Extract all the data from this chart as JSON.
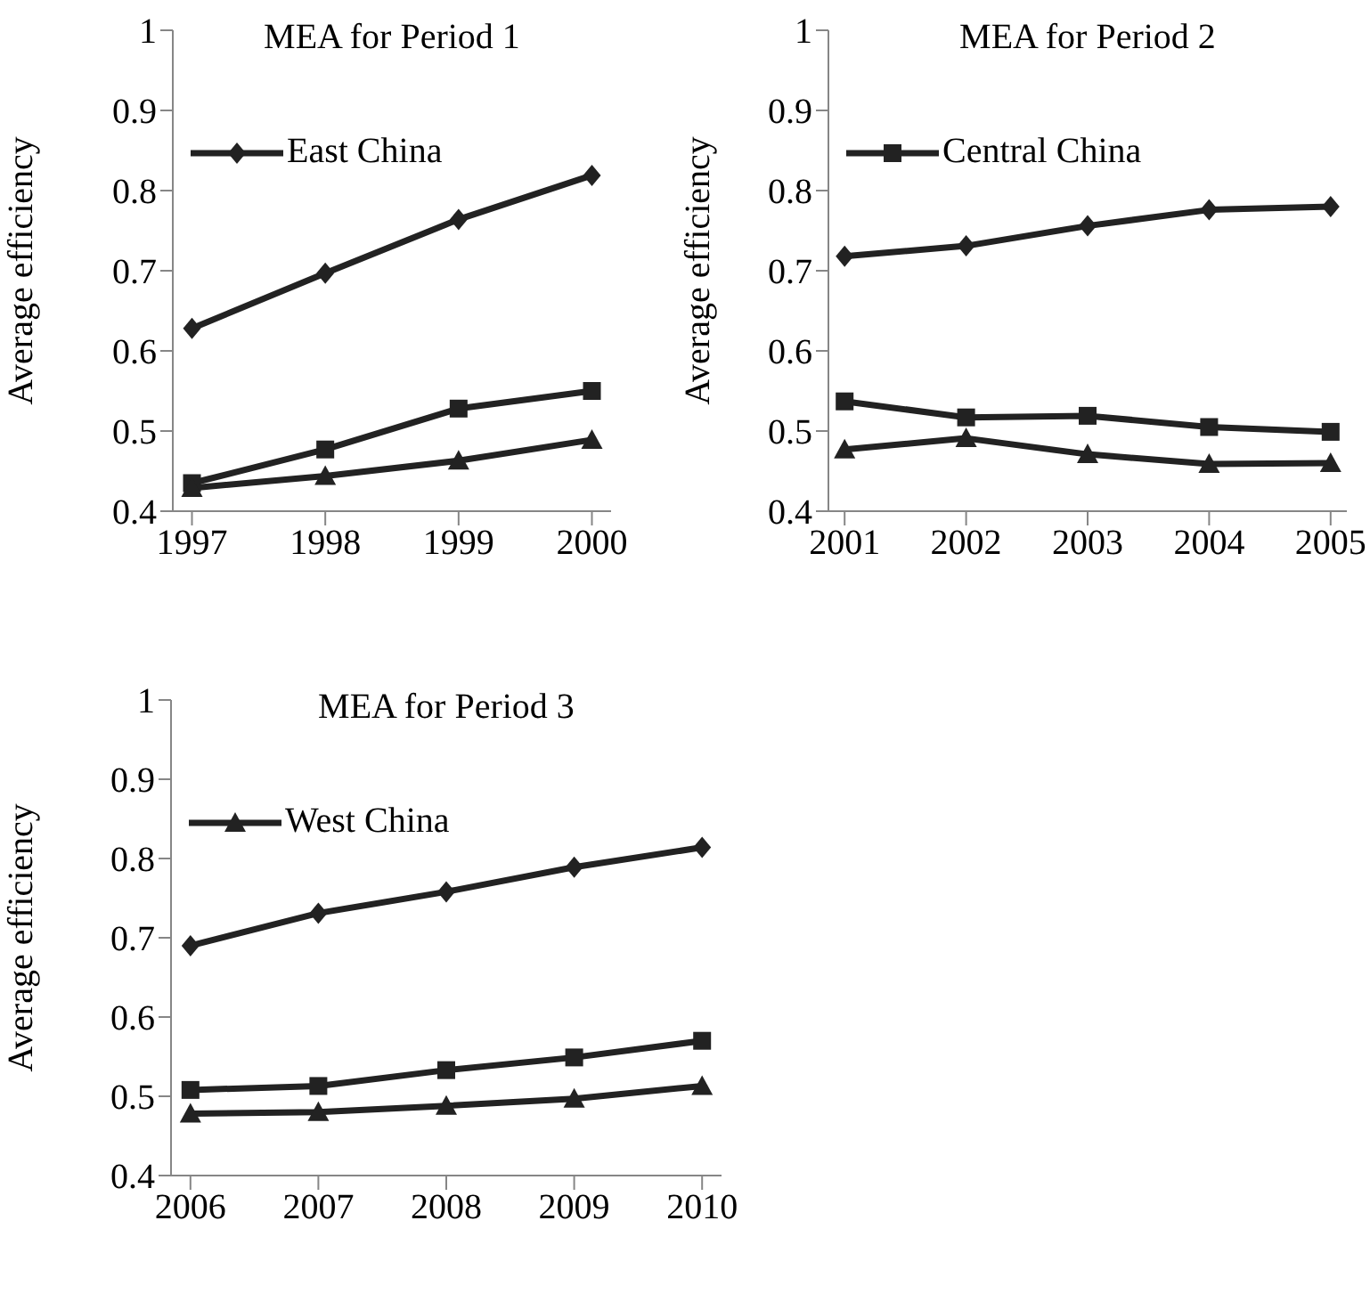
{
  "chart_data": [
    {
      "type": "line",
      "title": "MEA for Period 1",
      "ylabel": "Average efficiency",
      "categories": [
        "1997",
        "1998",
        "1999",
        "2000"
      ],
      "ylim": [
        0.4,
        1
      ],
      "yticks": [
        0.4,
        0.5,
        0.6,
        0.7,
        0.8,
        0.9,
        1
      ],
      "grid": false,
      "legend": "top left",
      "series": [
        {
          "name": "East China",
          "color": "#222222",
          "marker": "diamond",
          "values": [
            0.628,
            0.697,
            0.764,
            0.819
          ]
        },
        {
          "color": "#222222",
          "marker": "square",
          "values": [
            0.435,
            0.477,
            0.528,
            0.55
          ]
        },
        {
          "color": "#222222",
          "marker": "triangle",
          "values": [
            0.429,
            0.444,
            0.463,
            0.489
          ]
        }
      ]
    },
    {
      "type": "line",
      "title": "MEA for Period 2",
      "ylabel": "Average efficiency",
      "categories": [
        "2001",
        "2002",
        "2003",
        "2004",
        "2005"
      ],
      "ylim": [
        0.4,
        1
      ],
      "yticks": [
        0.4,
        0.5,
        0.6,
        0.7,
        0.8,
        0.9,
        1
      ],
      "grid": false,
      "legend": "top left",
      "series": [
        {
          "color": "#222222",
          "marker": "diamond",
          "values": [
            0.718,
            0.731,
            0.756,
            0.776,
            0.78
          ]
        },
        {
          "name": "Central China",
          "color": "#222222",
          "marker": "square",
          "values": [
            0.537,
            0.517,
            0.519,
            0.505,
            0.499
          ]
        },
        {
          "color": "#222222",
          "marker": "triangle",
          "values": [
            0.477,
            0.491,
            0.471,
            0.459,
            0.46
          ]
        }
      ]
    },
    {
      "type": "line",
      "title": "MEA for Period 3",
      "ylabel": "Average efficiency",
      "categories": [
        "2006",
        "2007",
        "2008",
        "2009",
        "2010"
      ],
      "ylim": [
        0.4,
        1
      ],
      "yticks": [
        0.4,
        0.5,
        0.6,
        0.7,
        0.8,
        0.9,
        1
      ],
      "grid": false,
      "legend": "top left",
      "series": [
        {
          "color": "#222222",
          "marker": "diamond",
          "values": [
            0.69,
            0.731,
            0.758,
            0.789,
            0.814
          ]
        },
        {
          "color": "#222222",
          "marker": "square",
          "values": [
            0.508,
            0.513,
            0.533,
            0.549,
            0.57
          ]
        },
        {
          "name": "West China",
          "color": "#222222",
          "marker": "triangle",
          "values": [
            0.478,
            0.48,
            0.488,
            0.497,
            0.513
          ]
        }
      ]
    }
  ]
}
